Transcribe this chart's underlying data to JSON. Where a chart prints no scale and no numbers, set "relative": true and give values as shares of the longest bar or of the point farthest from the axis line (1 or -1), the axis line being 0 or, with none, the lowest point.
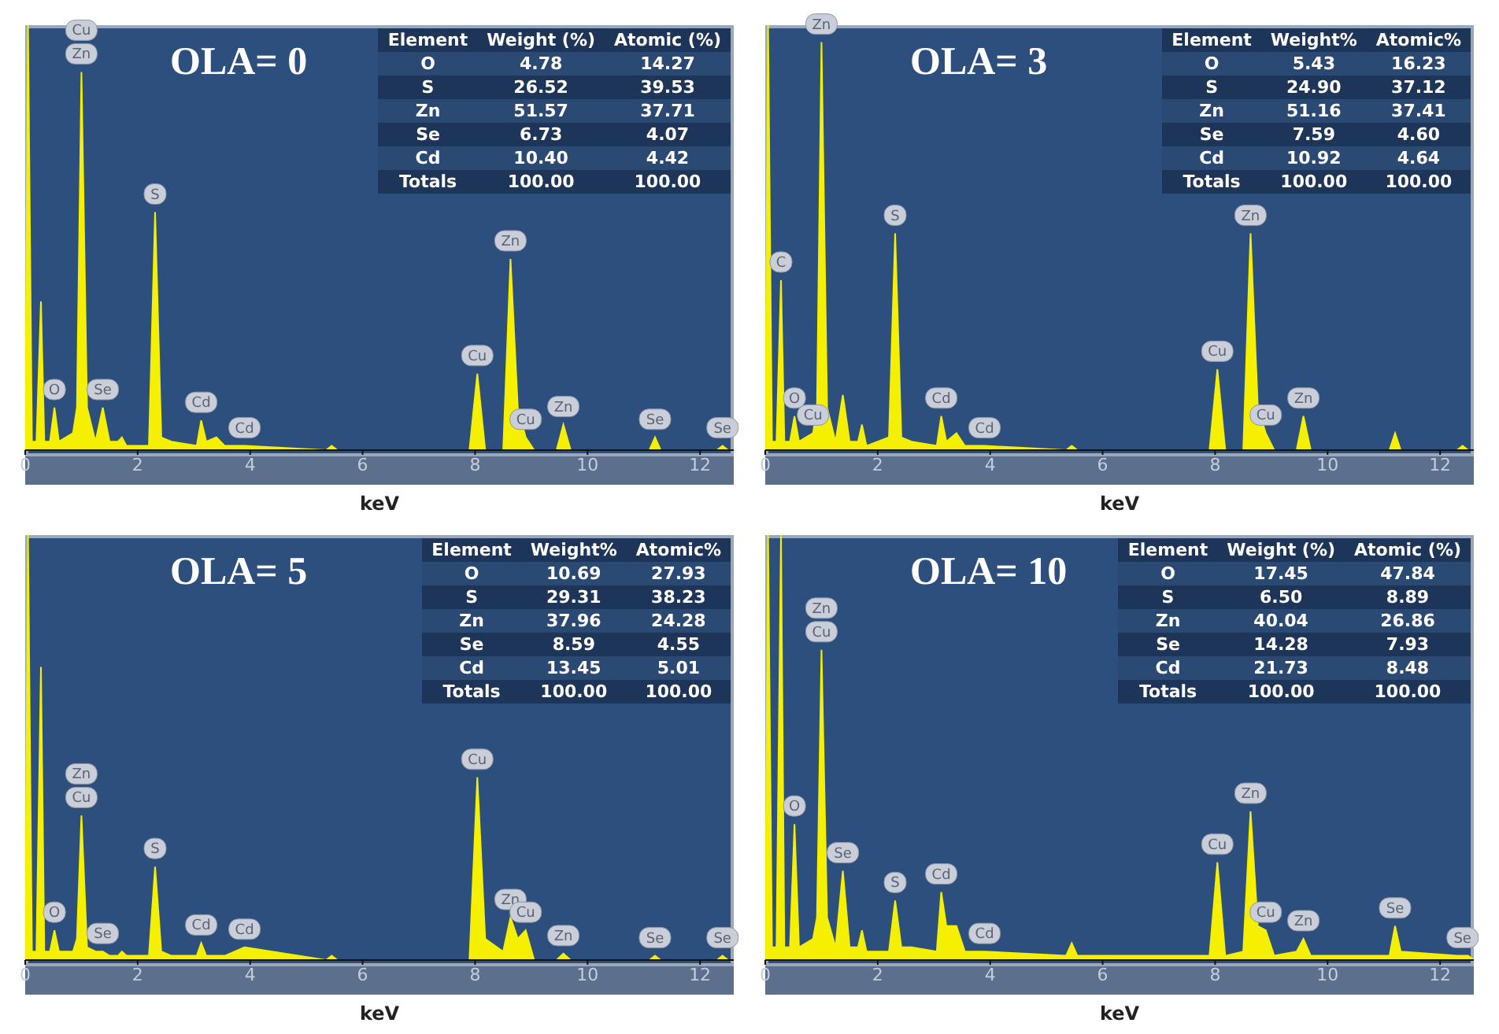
{
  "chart_data": [
    {
      "type": "area",
      "title": "OLA= 0",
      "xlabel": "keV",
      "relative": true,
      "xlim": [
        0,
        12.6
      ],
      "xticks": [
        0,
        2,
        4,
        6,
        8,
        10,
        12
      ],
      "x": [
        0,
        0.05,
        0.12,
        0.2,
        0.28,
        0.34,
        0.44,
        0.52,
        0.6,
        0.85,
        0.92,
        1.0,
        1.1,
        1.25,
        1.38,
        1.5,
        1.65,
        1.72,
        1.8,
        2.2,
        2.31,
        2.42,
        2.6,
        3.05,
        3.13,
        3.22,
        3.4,
        3.55,
        3.9,
        5.35,
        5.45,
        5.55,
        7.9,
        8.04,
        8.18,
        8.5,
        8.63,
        8.76,
        8.9,
        9.05,
        9.45,
        9.57,
        9.7,
        11.1,
        11.2,
        11.3,
        12.3,
        12.4,
        12.5,
        12.6
      ],
      "series": [
        {
          "color": "#f5f000",
          "values": [
            0,
            1,
            0.02,
            0.02,
            0.35,
            0.02,
            0.02,
            0.1,
            0.02,
            0.04,
            0.1,
            0.89,
            0.1,
            0.02,
            0.1,
            0.02,
            0.02,
            0.03,
            0.01,
            0.01,
            0.56,
            0.03,
            0.02,
            0.01,
            0.07,
            0.02,
            0.03,
            0.01,
            0.01,
            0,
            0.01,
            0,
            0,
            0.18,
            0,
            0,
            0.45,
            0.1,
            0.03,
            0,
            0,
            0.06,
            0,
            0,
            0.03,
            0,
            0,
            0.01,
            0,
            0
          ]
        }
      ],
      "annotations": [
        "Element",
        "Weight (%)",
        "Atomic (%)",
        "O",
        "4.78",
        "14.27",
        "S",
        "26.52",
        "39.53",
        "Zn",
        "51.57",
        "37.71",
        "Se",
        "6.73",
        "4.07",
        "Cd",
        "10.40",
        "4.42",
        "Totals",
        "100.00",
        "100.00",
        {
          "text": "Zn",
          "x": 1.0,
          "y": 0.89
        },
        {
          "text": "Cu",
          "x": 1.0,
          "y": 0.89
        },
        {
          "text": "O",
          "x": 0.52,
          "y": 0.1
        },
        {
          "text": "Se",
          "x": 1.38,
          "y": 0.1
        },
        {
          "text": "S",
          "x": 2.31,
          "y": 0.56
        },
        {
          "text": "Cd",
          "x": 3.13,
          "y": 0.07
        },
        {
          "text": "Cd",
          "x": 3.9,
          "y": 0.01
        },
        {
          "text": "Cu",
          "x": 8.04,
          "y": 0.18
        },
        {
          "text": "Zn",
          "x": 8.63,
          "y": 0.45
        },
        {
          "text": "Cu",
          "x": 8.9,
          "y": 0.03
        },
        {
          "text": "Zn",
          "x": 9.57,
          "y": 0.06
        },
        {
          "text": "Se",
          "x": 11.2,
          "y": 0.03
        },
        {
          "text": "Se",
          "x": 12.4,
          "y": 0.01
        }
      ]
    },
    {
      "type": "area",
      "title": "OLA= 3",
      "xlabel": "keV",
      "relative": true,
      "xlim": [
        0,
        12.6
      ],
      "xticks": [
        0,
        2,
        4,
        6,
        8,
        10,
        12
      ],
      "x": [
        0,
        0.05,
        0.12,
        0.2,
        0.28,
        0.34,
        0.44,
        0.52,
        0.6,
        0.85,
        0.92,
        1.0,
        1.1,
        1.25,
        1.38,
        1.5,
        1.65,
        1.72,
        1.8,
        2.2,
        2.31,
        2.42,
        2.6,
        3.05,
        3.13,
        3.22,
        3.4,
        3.55,
        3.9,
        5.35,
        5.45,
        5.55,
        7.9,
        8.04,
        8.18,
        8.5,
        8.63,
        8.76,
        8.9,
        9.05,
        9.45,
        9.57,
        9.7,
        11.1,
        11.2,
        11.3,
        12.3,
        12.4,
        12.5,
        12.6
      ],
      "series": [
        {
          "color": "#f5f000",
          "values": [
            0,
            1,
            0.02,
            0.02,
            0.4,
            0.02,
            0.02,
            0.08,
            0.02,
            0.04,
            0.1,
            0.96,
            0.1,
            0.02,
            0.13,
            0.02,
            0.02,
            0.06,
            0.01,
            0.03,
            0.51,
            0.03,
            0.02,
            0.01,
            0.08,
            0.02,
            0.04,
            0.01,
            0.01,
            0,
            0.01,
            0,
            0,
            0.19,
            0,
            0,
            0.51,
            0.1,
            0.04,
            0,
            0,
            0.08,
            0,
            0,
            0.04,
            0,
            0,
            0.01,
            0,
            0
          ]
        }
      ],
      "annotations": [
        "Element",
        "Weight%",
        "Atomic%",
        "O",
        "5.43",
        "16.23",
        "S",
        "24.90",
        "37.12",
        "Zn",
        "51.16",
        "37.41",
        "Se",
        "7.59",
        "4.60",
        "Cd",
        "10.92",
        "4.64",
        "Totals",
        "100.00",
        "100.00",
        {
          "text": "Zn",
          "x": 1.0,
          "y": 0.96
        },
        {
          "text": "C",
          "x": 0.28,
          "y": 0.4
        },
        {
          "text": "Cu",
          "x": 0.85,
          "y": 0.04
        },
        {
          "text": "O",
          "x": 0.52,
          "y": 0.08
        },
        {
          "text": "S",
          "x": 2.31,
          "y": 0.51
        },
        {
          "text": "Cd",
          "x": 3.13,
          "y": 0.08
        },
        {
          "text": "Cd",
          "x": 3.9,
          "y": 0.01
        },
        {
          "text": "Cu",
          "x": 8.04,
          "y": 0.19
        },
        {
          "text": "Zn",
          "x": 8.63,
          "y": 0.51
        },
        {
          "text": "Cu",
          "x": 8.9,
          "y": 0.04
        },
        {
          "text": "Zn",
          "x": 9.57,
          "y": 0.08
        }
      ]
    },
    {
      "type": "area",
      "title": "OLA= 5",
      "xlabel": "keV",
      "relative": true,
      "xlim": [
        0,
        12.6
      ],
      "xticks": [
        0,
        2,
        4,
        6,
        8,
        10,
        12
      ],
      "x": [
        0,
        0.05,
        0.12,
        0.2,
        0.28,
        0.34,
        0.44,
        0.52,
        0.6,
        0.85,
        0.92,
        1.0,
        1.1,
        1.25,
        1.38,
        1.5,
        1.65,
        1.72,
        1.8,
        2.2,
        2.31,
        2.42,
        2.6,
        3.05,
        3.13,
        3.22,
        3.4,
        3.55,
        3.9,
        5.35,
        5.45,
        5.55,
        7.9,
        8.04,
        8.18,
        8.5,
        8.63,
        8.76,
        8.9,
        9.05,
        9.45,
        9.57,
        9.7,
        11.1,
        11.2,
        11.3,
        12.3,
        12.4,
        12.5,
        12.6
      ],
      "series": [
        {
          "color": "#f5f000",
          "values": [
            0,
            1,
            0.02,
            0.02,
            0.69,
            0.02,
            0.02,
            0.07,
            0.02,
            0.02,
            0.05,
            0.34,
            0.03,
            0.02,
            0.02,
            0.01,
            0.01,
            0.02,
            0.01,
            0.01,
            0.22,
            0.02,
            0.01,
            0.01,
            0.04,
            0.01,
            0.01,
            0.01,
            0.03,
            0,
            0.01,
            0,
            0,
            0.43,
            0.05,
            0.02,
            0.1,
            0.05,
            0.07,
            0,
            0,
            0.015,
            0,
            0,
            0.01,
            0,
            0,
            0.01,
            0,
            0
          ]
        }
      ],
      "annotations": [
        "Element",
        "Weight%",
        "Atomic%",
        "O",
        "10.69",
        "27.93",
        "S",
        "29.31",
        "38.23",
        "Zn",
        "37.96",
        "24.28",
        "Se",
        "8.59",
        "4.55",
        "Cd",
        "13.45",
        "5.01",
        "Totals",
        "100.00",
        "100.00",
        {
          "text": "Cu",
          "x": 1.0,
          "y": 0.34
        },
        {
          "text": "Zn",
          "x": 1.0,
          "y": 0.34
        },
        {
          "text": "O",
          "x": 0.52,
          "y": 0.07
        },
        {
          "text": "Se",
          "x": 1.38,
          "y": 0.02
        },
        {
          "text": "S",
          "x": 2.31,
          "y": 0.22
        },
        {
          "text": "Cd",
          "x": 3.13,
          "y": 0.04
        },
        {
          "text": "Cd",
          "x": 3.9,
          "y": 0.03
        },
        {
          "text": "Cu",
          "x": 8.04,
          "y": 0.43
        },
        {
          "text": "Zn",
          "x": 8.63,
          "y": 0.1
        },
        {
          "text": "Cu",
          "x": 8.9,
          "y": 0.07
        },
        {
          "text": "Zn",
          "x": 9.57,
          "y": 0.015
        },
        {
          "text": "Se",
          "x": 11.2,
          "y": 0.01
        },
        {
          "text": "Se",
          "x": 12.4,
          "y": 0.01
        }
      ]
    },
    {
      "type": "area",
      "title": "OLA= 10",
      "xlabel": "keV",
      "relative": true,
      "xlim": [
        0,
        12.6
      ],
      "xticks": [
        0,
        2,
        4,
        6,
        8,
        10,
        12
      ],
      "x": [
        0,
        0.05,
        0.12,
        0.2,
        0.28,
        0.34,
        0.44,
        0.52,
        0.6,
        0.85,
        0.92,
        1.0,
        1.1,
        1.25,
        1.38,
        1.5,
        1.65,
        1.72,
        1.8,
        2.2,
        2.31,
        2.42,
        2.6,
        3.05,
        3.13,
        3.22,
        3.4,
        3.55,
        3.9,
        5.35,
        5.45,
        5.55,
        7.9,
        8.04,
        8.18,
        8.5,
        8.63,
        8.76,
        8.9,
        9.05,
        9.45,
        9.57,
        9.7,
        11.1,
        11.2,
        11.3,
        12.3,
        12.4,
        12.5,
        12.6
      ],
      "series": [
        {
          "color": "#f5f000",
          "values": [
            0,
            1,
            0.03,
            0.03,
            1,
            0.03,
            0.03,
            0.32,
            0.03,
            0.05,
            0.1,
            0.73,
            0.1,
            0.03,
            0.21,
            0.03,
            0.03,
            0.07,
            0.02,
            0.02,
            0.14,
            0.03,
            0.03,
            0.02,
            0.16,
            0.08,
            0.08,
            0.02,
            0.02,
            0.01,
            0.04,
            0.01,
            0.01,
            0.23,
            0.01,
            0.02,
            0.35,
            0.08,
            0.07,
            0.01,
            0.02,
            0.05,
            0.01,
            0.01,
            0.08,
            0.02,
            0.01,
            0.01,
            0.01,
            0
          ]
        }
      ],
      "annotations": [
        "Element",
        "Weight (%)",
        "Atomic (%)",
        "O",
        "17.45",
        "47.84",
        "S",
        "6.50",
        "8.89",
        "Zn",
        "40.04",
        "26.86",
        "Se",
        "14.28",
        "7.93",
        "Cd",
        "21.73",
        "8.48",
        "Totals",
        "100.00",
        "100.00",
        {
          "text": "Cu",
          "x": 1.0,
          "y": 0.73
        },
        {
          "text": "Zn",
          "x": 1.0,
          "y": 0.73
        },
        {
          "text": "O",
          "x": 0.52,
          "y": 0.32
        },
        {
          "text": "Se",
          "x": 1.38,
          "y": 0.21
        },
        {
          "text": "S",
          "x": 2.31,
          "y": 0.14
        },
        {
          "text": "Cd",
          "x": 3.13,
          "y": 0.16
        },
        {
          "text": "Cd",
          "x": 3.9,
          "y": 0.02
        },
        {
          "text": "Cu",
          "x": 8.04,
          "y": 0.23
        },
        {
          "text": "Zn",
          "x": 8.63,
          "y": 0.35
        },
        {
          "text": "Cu",
          "x": 8.9,
          "y": 0.07
        },
        {
          "text": "Zn",
          "x": 9.57,
          "y": 0.05
        },
        {
          "text": "Se",
          "x": 11.2,
          "y": 0.08
        },
        {
          "text": "Se",
          "x": 12.4,
          "y": 0.01
        }
      ]
    }
  ]
}
